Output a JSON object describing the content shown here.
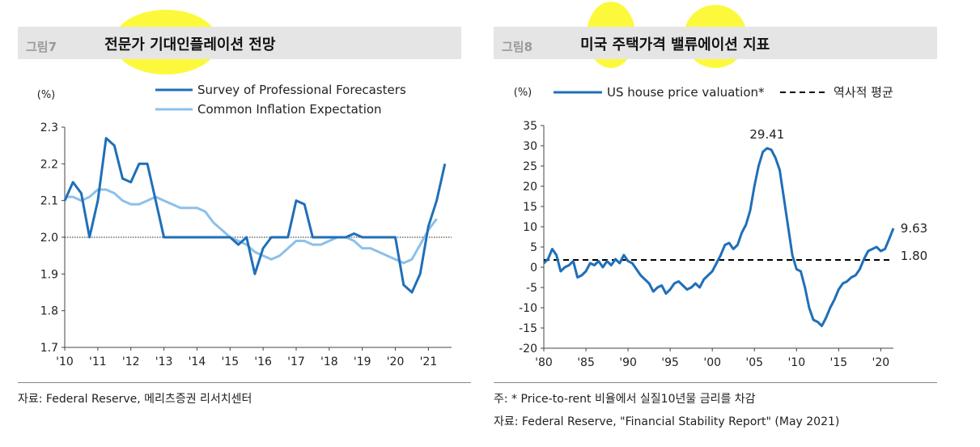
{
  "left": {
    "fig_num": "그림7",
    "title": "전문가 기대인플레이션 전망",
    "source": "자료: Federal Reserve, 메리츠증권 리서치센터",
    "chart_data": {
      "type": "line",
      "ylabel": "(%)",
      "ylim": [
        1.7,
        2.3
      ],
      "yticks": [
        "2.3",
        "2.2",
        "2.1",
        "2.0",
        "1.9",
        "1.8",
        "1.7"
      ],
      "ytick_values": [
        2.3,
        2.2,
        2.1,
        2.0,
        1.9,
        1.8,
        1.7
      ],
      "xlim": [
        2010,
        2021.7
      ],
      "xticks": [
        "'10",
        "'11",
        "'12",
        "'13",
        "'14",
        "'15",
        "'16",
        "'17",
        "'18",
        "'19",
        "'20",
        "'21"
      ],
      "xtick_values": [
        2010,
        2011,
        2012,
        2013,
        2014,
        2015,
        2016,
        2017,
        2018,
        2019,
        2020,
        2021
      ],
      "reference_line": 2.0,
      "series": [
        {
          "name": "Survey of Professional Forecasters",
          "color": "#1f6fb8",
          "points": [
            [
              2010,
              2.1
            ],
            [
              2010.25,
              2.15
            ],
            [
              2010.5,
              2.12
            ],
            [
              2010.75,
              2.0
            ],
            [
              2011,
              2.1
            ],
            [
              2011.25,
              2.27
            ],
            [
              2011.5,
              2.25
            ],
            [
              2011.75,
              2.16
            ],
            [
              2012,
              2.15
            ],
            [
              2012.25,
              2.2
            ],
            [
              2012.5,
              2.2
            ],
            [
              2012.75,
              2.1
            ],
            [
              2013,
              2.0
            ],
            [
              2013.5,
              2.0
            ],
            [
              2014,
              2.0
            ],
            [
              2014.5,
              2.0
            ],
            [
              2015,
              2.0
            ],
            [
              2015.25,
              1.98
            ],
            [
              2015.5,
              2.0
            ],
            [
              2015.75,
              1.9
            ],
            [
              2016,
              1.97
            ],
            [
              2016.25,
              2.0
            ],
            [
              2016.5,
              2.0
            ],
            [
              2016.75,
              2.0
            ],
            [
              2017,
              2.1
            ],
            [
              2017.25,
              2.09
            ],
            [
              2017.5,
              2.0
            ],
            [
              2017.75,
              2.0
            ],
            [
              2018,
              2.0
            ],
            [
              2018.5,
              2.0
            ],
            [
              2018.75,
              2.01
            ],
            [
              2019,
              2.0
            ],
            [
              2019.5,
              2.0
            ],
            [
              2020,
              2.0
            ],
            [
              2020.25,
              1.87
            ],
            [
              2020.5,
              1.85
            ],
            [
              2020.75,
              1.9
            ],
            [
              2021,
              2.03
            ],
            [
              2021.25,
              2.1
            ],
            [
              2021.5,
              2.2
            ]
          ]
        },
        {
          "name": "Common Inflation Expectation",
          "color": "#8cc0ea",
          "points": [
            [
              2010,
              2.11
            ],
            [
              2010.25,
              2.11
            ],
            [
              2010.5,
              2.1
            ],
            [
              2010.75,
              2.11
            ],
            [
              2011,
              2.13
            ],
            [
              2011.25,
              2.13
            ],
            [
              2011.5,
              2.12
            ],
            [
              2011.75,
              2.1
            ],
            [
              2012,
              2.09
            ],
            [
              2012.25,
              2.09
            ],
            [
              2012.5,
              2.1
            ],
            [
              2012.75,
              2.11
            ],
            [
              2013,
              2.1
            ],
            [
              2013.25,
              2.09
            ],
            [
              2013.5,
              2.08
            ],
            [
              2013.75,
              2.08
            ],
            [
              2014,
              2.08
            ],
            [
              2014.25,
              2.07
            ],
            [
              2014.5,
              2.04
            ],
            [
              2014.75,
              2.02
            ],
            [
              2015,
              2.0
            ],
            [
              2015.25,
              1.99
            ],
            [
              2015.5,
              1.98
            ],
            [
              2015.75,
              1.96
            ],
            [
              2016,
              1.95
            ],
            [
              2016.25,
              1.94
            ],
            [
              2016.5,
              1.95
            ],
            [
              2016.75,
              1.97
            ],
            [
              2017,
              1.99
            ],
            [
              2017.25,
              1.99
            ],
            [
              2017.5,
              1.98
            ],
            [
              2017.75,
              1.98
            ],
            [
              2018,
              1.99
            ],
            [
              2018.25,
              2.0
            ],
            [
              2018.5,
              2.0
            ],
            [
              2018.75,
              1.99
            ],
            [
              2019,
              1.97
            ],
            [
              2019.25,
              1.97
            ],
            [
              2019.5,
              1.96
            ],
            [
              2019.75,
              1.95
            ],
            [
              2020,
              1.94
            ],
            [
              2020.25,
              1.93
            ],
            [
              2020.5,
              1.94
            ],
            [
              2020.75,
              1.98
            ],
            [
              2021,
              2.02
            ],
            [
              2021.25,
              2.05
            ]
          ]
        }
      ]
    }
  },
  "right": {
    "fig_num": "그림8",
    "title": "미국 주택가격 밸류에이션 지표",
    "note": "주: * Price-to-rent 비율에서 실질10년물 금리를 차감",
    "source": "자료: Federal Reserve, \"Financial Stability Report\" (May 2021)",
    "chart_data": {
      "type": "line",
      "ylabel": "(%)",
      "ylim": [
        -20,
        35
      ],
      "yticks": [
        "35",
        "30",
        "25",
        "20",
        "15",
        "10",
        "5",
        "0",
        "-5",
        "-10",
        "-15",
        "-20"
      ],
      "ytick_values": [
        35,
        30,
        25,
        20,
        15,
        10,
        5,
        0,
        -5,
        -10,
        -15,
        -20
      ],
      "xlim": [
        1980,
        2021.5
      ],
      "xticks": [
        "'80",
        "'85",
        "'90",
        "'95",
        "'00",
        "'05",
        "'10",
        "'15",
        "'20"
      ],
      "xtick_values": [
        1980,
        1985,
        1990,
        1995,
        2000,
        2005,
        2010,
        2015,
        2020
      ],
      "annotations": [
        {
          "text": "29.41",
          "x": 2006.5,
          "y": 29.41
        },
        {
          "text": "9.63",
          "x": 2021,
          "y": 9.63
        },
        {
          "text": "1.80",
          "x": 2021,
          "y": 1.8
        }
      ],
      "series": [
        {
          "name": "US house price valuation*",
          "color": "#1f6fb8",
          "style": "solid",
          "points": [
            [
              1980,
              1.0
            ],
            [
              1980.5,
              2.0
            ],
            [
              1981,
              4.5
            ],
            [
              1981.5,
              3.0
            ],
            [
              1982,
              -1.0
            ],
            [
              1982.5,
              0.0
            ],
            [
              1983,
              0.5
            ],
            [
              1983.5,
              1.5
            ],
            [
              1984,
              -2.5
            ],
            [
              1984.5,
              -2.0
            ],
            [
              1985,
              -1.0
            ],
            [
              1985.5,
              1.0
            ],
            [
              1986,
              0.5
            ],
            [
              1986.5,
              1.5
            ],
            [
              1987,
              0.0
            ],
            [
              1987.5,
              1.5
            ],
            [
              1988,
              0.5
            ],
            [
              1988.5,
              2.0
            ],
            [
              1989,
              1.0
            ],
            [
              1989.5,
              3.0
            ],
            [
              1990,
              1.5
            ],
            [
              1990.5,
              1.0
            ],
            [
              1991,
              -0.5
            ],
            [
              1991.5,
              -2.0
            ],
            [
              1992,
              -3.0
            ],
            [
              1992.5,
              -4.0
            ],
            [
              1993,
              -6.0
            ],
            [
              1993.5,
              -5.0
            ],
            [
              1994,
              -4.5
            ],
            [
              1994.5,
              -6.5
            ],
            [
              1995,
              -5.5
            ],
            [
              1995.5,
              -4.0
            ],
            [
              1996,
              -3.5
            ],
            [
              1996.5,
              -4.5
            ],
            [
              1997,
              -5.5
            ],
            [
              1997.5,
              -5.0
            ],
            [
              1998,
              -4.0
            ],
            [
              1998.5,
              -5.0
            ],
            [
              1999,
              -3.0
            ],
            [
              1999.5,
              -2.0
            ],
            [
              2000,
              -1.0
            ],
            [
              2000.5,
              1.0
            ],
            [
              2001,
              3.0
            ],
            [
              2001.5,
              5.5
            ],
            [
              2002,
              6.0
            ],
            [
              2002.5,
              4.5
            ],
            [
              2003,
              5.5
            ],
            [
              2003.5,
              8.5
            ],
            [
              2004,
              10.5
            ],
            [
              2004.5,
              14.0
            ],
            [
              2005,
              20.0
            ],
            [
              2005.5,
              25.0
            ],
            [
              2006,
              28.5
            ],
            [
              2006.5,
              29.41
            ],
            [
              2007,
              29.0
            ],
            [
              2007.5,
              27.0
            ],
            [
              2008,
              24.0
            ],
            [
              2008.5,
              17.0
            ],
            [
              2009,
              10.0
            ],
            [
              2009.5,
              3.0
            ],
            [
              2010,
              -0.5
            ],
            [
              2010.5,
              -1.0
            ],
            [
              2011,
              -5.0
            ],
            [
              2011.5,
              -10.0
            ],
            [
              2012,
              -13.0
            ],
            [
              2012.5,
              -13.5
            ],
            [
              2013,
              -14.5
            ],
            [
              2013.5,
              -12.5
            ],
            [
              2014,
              -10.0
            ],
            [
              2014.5,
              -8.0
            ],
            [
              2015,
              -5.5
            ],
            [
              2015.5,
              -4.0
            ],
            [
              2016,
              -3.5
            ],
            [
              2016.5,
              -2.5
            ],
            [
              2017,
              -2.0
            ],
            [
              2017.5,
              -0.5
            ],
            [
              2018,
              2.0
            ],
            [
              2018.5,
              4.0
            ],
            [
              2019,
              4.5
            ],
            [
              2019.5,
              5.0
            ],
            [
              2020,
              4.0
            ],
            [
              2020.5,
              4.5
            ],
            [
              2021,
              7.0
            ],
            [
              2021.5,
              9.63
            ]
          ]
        },
        {
          "name": "역사적 평균",
          "color": "#000000",
          "style": "dashed",
          "points": [
            [
              1980,
              1.8
            ],
            [
              2021.5,
              1.8
            ]
          ]
        }
      ]
    }
  }
}
